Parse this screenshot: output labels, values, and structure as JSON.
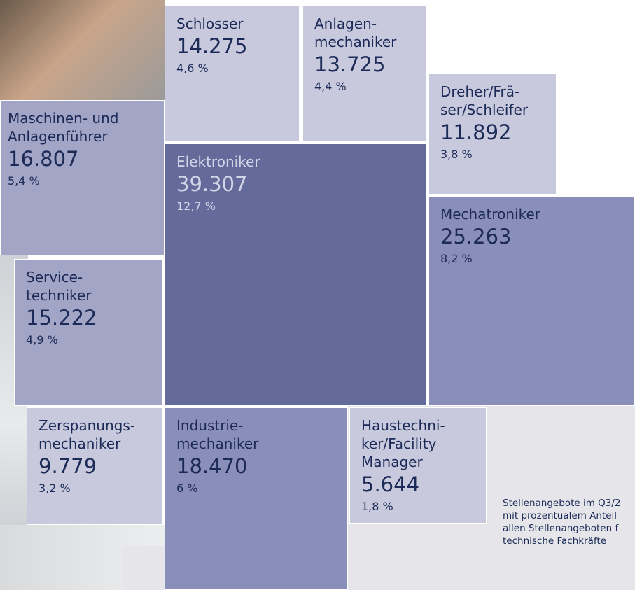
{
  "tiles": [
    {
      "label_lines": [
        "Schlosser"
      ],
      "value": "14.275",
      "share": "4,6 %"
    },
    {
      "label_lines": [
        "Anlagen-",
        "mechaniker"
      ],
      "value": "13.725",
      "share": "4,4 %"
    },
    {
      "label_lines": [
        "Dreher/Frä-",
        "ser/Schleifer"
      ],
      "value": "11.892",
      "share": "3,8 %"
    },
    {
      "label_lines": [
        "Maschinen- und",
        "Anlagenführer"
      ],
      "value": "16.807",
      "share": "5,4 %"
    },
    {
      "label_lines": [
        "Elektroniker"
      ],
      "value": "39.307",
      "share": "12,7 %"
    },
    {
      "label_lines": [
        "Mechatroniker"
      ],
      "value": "25.263",
      "share": "8,2 %"
    },
    {
      "label_lines": [
        "Service-",
        "techniker"
      ],
      "value": "15.222",
      "share": "4,9 %"
    },
    {
      "label_lines": [
        "Zerspanungs-",
        "mechaniker"
      ],
      "value": "9.779",
      "share": "3,2 %"
    },
    {
      "label_lines": [
        "Industrie-",
        "mechaniker"
      ],
      "value": "18.470",
      "share": "6 %"
    },
    {
      "label_lines": [
        "Haustechni-",
        "ker/Facility",
        "Manager"
      ],
      "value": "5.644",
      "share": "1,8 %"
    }
  ],
  "caption_lines": [
    "Stellenangebote im Q3/2",
    "mit prozentualem Anteil",
    "allen Stellenangeboten f",
    "technische Fachkräfte"
  ]
}
